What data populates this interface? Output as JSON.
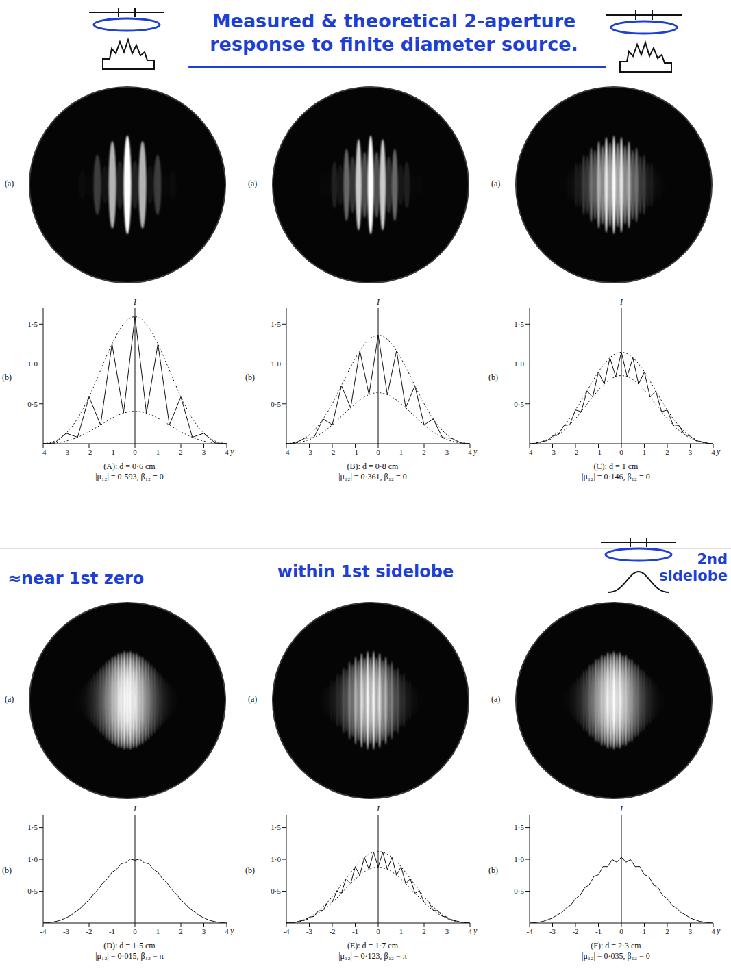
{
  "title": "Measured & theoretical 2-aperture response to finite diameter source.",
  "chart_data": [
    {
      "type": "line",
      "photo_label": "(a)",
      "plot_label": "(b)",
      "caption": [
        "(A): d = 0·6 cm",
        "|μ₁₂| = 0·593, β₁₂ = 0"
      ],
      "xlabel": "y",
      "ylabel": "I",
      "xlim": [
        -4,
        4
      ],
      "xticks": [
        -4,
        -3,
        -2,
        -1,
        0,
        1,
        2,
        3,
        4
      ],
      "ylim": [
        0,
        1.7
      ],
      "yticks": [
        {
          "value": 0.5,
          "label": "0·5"
        },
        {
          "value": 1,
          "label": "1·0"
        },
        {
          "value": 1.5,
          "label": "1·5"
        }
      ],
      "x": [
        -4,
        -3.5,
        -3,
        -2.5,
        -2,
        -1.5,
        -1,
        -0.5,
        0,
        0.5,
        1,
        1.5,
        2,
        2.5,
        3,
        3.5,
        4
      ],
      "series": [
        {
          "color": "#111111",
          "line_style": "dotted",
          "values": [
            0,
            0.033,
            0.131,
            0.317,
            0.588,
            0.921,
            1.252,
            1.499,
            1.593,
            1.499,
            1.252,
            0.921,
            0.588,
            0.317,
            0.131,
            0.033,
            0
          ]
        },
        {
          "color": "#111111",
          "line_style": "dotted",
          "values": [
            0,
            0.009,
            0.033,
            0.081,
            0.15,
            0.235,
            0.32,
            0.383,
            0.407,
            0.383,
            0.32,
            0.235,
            0.15,
            0.081,
            0.033,
            0.009,
            0
          ]
        },
        {
          "color": "#111111",
          "line_style": "solid",
          "values": [
            0,
            0.009,
            0.131,
            0.081,
            0.588,
            0.235,
            1.252,
            0.383,
            1.593,
            0.383,
            1.252,
            0.235,
            0.588,
            0.081,
            0.131,
            0.009,
            0
          ]
        }
      ]
    },
    {
      "type": "line",
      "photo_label": "(a)",
      "plot_label": "(b)",
      "caption": [
        "(B): d = 0·8 cm",
        "|μ₁₂| = 0·361, β₁₂ = 0"
      ],
      "xlabel": "y",
      "ylabel": "I",
      "xlim": [
        -4,
        4
      ],
      "xticks": [
        -4,
        -3,
        -2,
        -1,
        0,
        1,
        2,
        3,
        4
      ],
      "ylim": [
        0,
        1.7
      ],
      "yticks": [
        {
          "value": 0.5,
          "label": "0·5"
        },
        {
          "value": 1,
          "label": "1·0"
        },
        {
          "value": 1.5,
          "label": "1·5"
        }
      ],
      "x": [
        -4,
        -3.6,
        -3.2,
        -2.8,
        -2.4,
        -2,
        -1.6,
        -1.2,
        -0.8,
        -0.4,
        0,
        0.4,
        0.8,
        1.2,
        1.6,
        2,
        2.4,
        2.8,
        3.2,
        3.6,
        4
      ],
      "series": [
        {
          "color": "#111111",
          "line_style": "dotted",
          "values": [
            0,
            0.019,
            0.069,
            0.165,
            0.31,
            0.502,
            0.728,
            0.961,
            1.166,
            1.309,
            1.361,
            1.309,
            1.166,
            0.961,
            0.728,
            0.502,
            0.31,
            0.165,
            0.069,
            0.019,
            0
          ]
        },
        {
          "color": "#111111",
          "line_style": "dotted",
          "values": [
            0,
            0.009,
            0.033,
            0.077,
            0.146,
            0.236,
            0.342,
            0.451,
            0.548,
            0.615,
            0.639,
            0.615,
            0.548,
            0.451,
            0.342,
            0.236,
            0.146,
            0.077,
            0.033,
            0.009,
            0
          ]
        },
        {
          "color": "#111111",
          "line_style": "solid",
          "values": [
            0,
            0.009,
            0.069,
            0.077,
            0.31,
            0.236,
            0.728,
            0.451,
            1.166,
            0.615,
            1.361,
            0.615,
            1.166,
            0.451,
            0.728,
            0.236,
            0.31,
            0.077,
            0.069,
            0.009,
            0
          ]
        }
      ]
    },
    {
      "type": "line",
      "photo_label": "(a)",
      "plot_label": "(b)",
      "caption": [
        "(C): d = 1 cm",
        "|μ₁₂| = 0·146, β₁₂ = 0"
      ],
      "xlabel": "y",
      "ylabel": "I",
      "xlim": [
        -4,
        4
      ],
      "xticks": [
        -4,
        -3,
        -2,
        -1,
        0,
        1,
        2,
        3,
        4
      ],
      "ylim": [
        0,
        1.7
      ],
      "yticks": [
        {
          "value": 0.5,
          "label": "0·5"
        },
        {
          "value": 1,
          "label": "1·0"
        },
        {
          "value": 1.5,
          "label": "1·5"
        }
      ],
      "x": [
        -4,
        -3.75,
        -3.5,
        -3.25,
        -3,
        -2.75,
        -2.5,
        -2.25,
        -2,
        -1.75,
        -1.5,
        -1.25,
        -1,
        -0.75,
        -0.5,
        -0.25,
        0,
        0.25,
        0.5,
        0.75,
        1,
        1.25,
        1.5,
        1.75,
        2,
        2.25,
        2.5,
        2.75,
        3,
        3.25,
        3.5,
        3.75,
        4
      ],
      "series": [
        {
          "color": "#111111",
          "line_style": "dotted",
          "values": [
            0,
            0.008,
            0.024,
            0.052,
            0.094,
            0.152,
            0.228,
            0.317,
            0.423,
            0.54,
            0.662,
            0.785,
            0.901,
            1.0,
            1.078,
            1.129,
            1.146,
            1.129,
            1.078,
            1.0,
            0.901,
            0.785,
            0.662,
            0.54,
            0.423,
            0.317,
            0.228,
            0.152,
            0.094,
            0.052,
            0.024,
            0.008,
            0
          ]
        },
        {
          "color": "#111111",
          "line_style": "dotted",
          "values": [
            0,
            0.006,
            0.018,
            0.038,
            0.07,
            0.114,
            0.17,
            0.237,
            0.315,
            0.402,
            0.494,
            0.585,
            0.671,
            0.746,
            0.804,
            0.841,
            0.854,
            0.841,
            0.804,
            0.746,
            0.671,
            0.585,
            0.494,
            0.402,
            0.315,
            0.237,
            0.17,
            0.114,
            0.07,
            0.038,
            0.018,
            0.006,
            0
          ]
        },
        {
          "color": "#111111",
          "line_style": "solid",
          "values": [
            0,
            0.006,
            0.024,
            0.038,
            0.094,
            0.114,
            0.228,
            0.237,
            0.423,
            0.402,
            0.662,
            0.585,
            0.901,
            0.746,
            1.078,
            0.841,
            1.146,
            0.841,
            1.078,
            0.746,
            0.901,
            0.585,
            0.662,
            0.402,
            0.423,
            0.237,
            0.228,
            0.114,
            0.094,
            0.038,
            0.024,
            0.006,
            0
          ]
        }
      ]
    },
    {
      "type": "line",
      "note": "≈near 1st zero",
      "photo_label": "(a)",
      "plot_label": "(b)",
      "caption": [
        "(D): d = 1·5 cm",
        "|μ₁₂| = 0·015, β₁₂ = π"
      ],
      "xlabel": "y",
      "ylabel": "I",
      "xlim": [
        -4,
        4
      ],
      "xticks": [
        -4,
        -3,
        -2,
        -1,
        0,
        1,
        2,
        3,
        4
      ],
      "ylim": [
        0,
        1.7
      ],
      "yticks": [
        {
          "value": 0.5,
          "label": "0·5"
        },
        {
          "value": 1,
          "label": "1·0"
        },
        {
          "value": 1.5,
          "label": "1·5"
        }
      ],
      "x": [
        -4,
        -3.8,
        -3.6,
        -3.4,
        -3.2,
        -3,
        -2.8,
        -2.6,
        -2.4,
        -2.2,
        -2,
        -1.8,
        -1.6,
        -1.4,
        -1.2,
        -1,
        -0.8,
        -0.6,
        -0.4,
        -0.2,
        0,
        0.2,
        0.4,
        0.6,
        0.8,
        1,
        1.2,
        1.4,
        1.6,
        1.8,
        2,
        2.2,
        2.4,
        2.6,
        2.8,
        3,
        3.2,
        3.4,
        3.6,
        3.8,
        4
      ],
      "series": [
        {
          "color": "#111111",
          "line_style": "solid",
          "values": [
            0,
            0.005,
            0.014,
            0.029,
            0.05,
            0.083,
            0.119,
            0.173,
            0.225,
            0.298,
            0.363,
            0.457,
            0.527,
            0.63,
            0.695,
            0.798,
            0.844,
            0.931,
            0.948,
            1.005,
            0.985,
            1.005,
            0.948,
            0.931,
            0.844,
            0.798,
            0.695,
            0.63,
            0.527,
            0.457,
            0.363,
            0.298,
            0.225,
            0.173,
            0.119,
            0.083,
            0.05,
            0.029,
            0.014,
            0.005,
            0
          ]
        }
      ]
    },
    {
      "type": "line",
      "note": "within 1st sidelobe",
      "photo_label": "(a)",
      "plot_label": "(b)",
      "caption": [
        "(E): d = 1·7 cm",
        "|μ₁₂| = 0·123, β₁₂ = π"
      ],
      "xlabel": "y",
      "ylabel": "I",
      "xlim": [
        -4,
        4
      ],
      "xticks": [
        -4,
        -3,
        -2,
        -1,
        0,
        1,
        2,
        3,
        4
      ],
      "ylim": [
        0,
        1.7
      ],
      "yticks": [
        {
          "value": 0.5,
          "label": "0·5"
        },
        {
          "value": 1,
          "label": "1·0"
        },
        {
          "value": 1.5,
          "label": "1·5"
        }
      ],
      "x": [
        -4,
        -3.8,
        -3.6,
        -3.4,
        -3.2,
        -3,
        -2.8,
        -2.6,
        -2.4,
        -2.2,
        -2,
        -1.8,
        -1.6,
        -1.4,
        -1.2,
        -1,
        -0.8,
        -0.6,
        -0.4,
        -0.2,
        0,
        0.2,
        0.4,
        0.6,
        0.8,
        1,
        1.2,
        1.4,
        1.6,
        1.8,
        2,
        2.2,
        2.4,
        2.6,
        2.8,
        3,
        3.2,
        3.4,
        3.6,
        3.8,
        4
      ],
      "series": [
        {
          "color": "#111111",
          "line_style": "dotted",
          "values": [
            0,
            0.006,
            0.016,
            0.033,
            0.057,
            0.092,
            0.136,
            0.191,
            0.256,
            0.33,
            0.414,
            0.505,
            0.601,
            0.697,
            0.793,
            0.883,
            0.962,
            1.03,
            1.08,
            1.112,
            1.123,
            1.112,
            1.08,
            1.03,
            0.962,
            0.883,
            0.793,
            0.697,
            0.601,
            0.505,
            0.414,
            0.33,
            0.256,
            0.191,
            0.136,
            0.092,
            0.057,
            0.033,
            0.016,
            0.006,
            0
          ]
        },
        {
          "color": "#111111",
          "line_style": "dotted",
          "values": [
            0,
            0.004,
            0.012,
            0.025,
            0.045,
            0.072,
            0.106,
            0.149,
            0.2,
            0.258,
            0.324,
            0.395,
            0.469,
            0.545,
            0.619,
            0.689,
            0.752,
            0.804,
            0.844,
            0.868,
            0.877,
            0.868,
            0.844,
            0.804,
            0.752,
            0.689,
            0.619,
            0.545,
            0.469,
            0.395,
            0.324,
            0.258,
            0.2,
            0.149,
            0.106,
            0.072,
            0.045,
            0.025,
            0.012,
            0.004,
            0
          ]
        },
        {
          "color": "#111111",
          "line_style": "solid",
          "values": [
            0,
            0.006,
            0.012,
            0.033,
            0.045,
            0.092,
            0.106,
            0.191,
            0.2,
            0.33,
            0.324,
            0.505,
            0.469,
            0.697,
            0.619,
            0.883,
            0.752,
            1.03,
            0.844,
            1.112,
            0.877,
            1.112,
            0.844,
            1.03,
            0.752,
            0.883,
            0.619,
            0.697,
            0.469,
            0.505,
            0.324,
            0.33,
            0.2,
            0.191,
            0.106,
            0.092,
            0.045,
            0.033,
            0.012,
            0.006,
            0
          ]
        }
      ]
    },
    {
      "type": "line",
      "note": "2nd sidelobe",
      "photo_label": "(a)",
      "plot_label": "(b)",
      "caption": [
        "(F): d = 2·3 cm",
        "|μ₁₂| = 0·035, β₁₂ = 0"
      ],
      "xlabel": "y",
      "ylabel": "I",
      "xlim": [
        -4,
        4
      ],
      "xticks": [
        -4,
        -3,
        -2,
        -1,
        0,
        1,
        2,
        3,
        4
      ],
      "ylim": [
        0,
        1.7
      ],
      "yticks": [
        {
          "value": 0.5,
          "label": "0·5"
        },
        {
          "value": 1,
          "label": "1·0"
        },
        {
          "value": 1.5,
          "label": "1·5"
        }
      ],
      "x": [
        -4,
        -3.8,
        -3.6,
        -3.4,
        -3.2,
        -3,
        -2.8,
        -2.6,
        -2.4,
        -2.2,
        -2,
        -1.8,
        -1.6,
        -1.4,
        -1.2,
        -1,
        -0.8,
        -0.6,
        -0.4,
        -0.2,
        0,
        0.2,
        0.4,
        0.6,
        0.8,
        1,
        1.2,
        1.4,
        1.6,
        1.8,
        2,
        2.2,
        2.4,
        2.6,
        2.8,
        3,
        3.2,
        3.4,
        3.6,
        3.8,
        4
      ],
      "series": [
        {
          "color": "#111111",
          "line_style": "solid",
          "values": [
            0,
            0.005,
            0.014,
            0.028,
            0.053,
            0.079,
            0.125,
            0.164,
            0.236,
            0.284,
            0.382,
            0.434,
            0.554,
            0.599,
            0.731,
            0.758,
            0.887,
            0.885,
            0.996,
            0.955,
            1.035,
            0.955,
            0.996,
            0.885,
            0.887,
            0.758,
            0.731,
            0.599,
            0.554,
            0.434,
            0.382,
            0.284,
            0.236,
            0.164,
            0.125,
            0.079,
            0.053,
            0.028,
            0.014,
            0.005,
            0
          ]
        }
      ]
    }
  ]
}
